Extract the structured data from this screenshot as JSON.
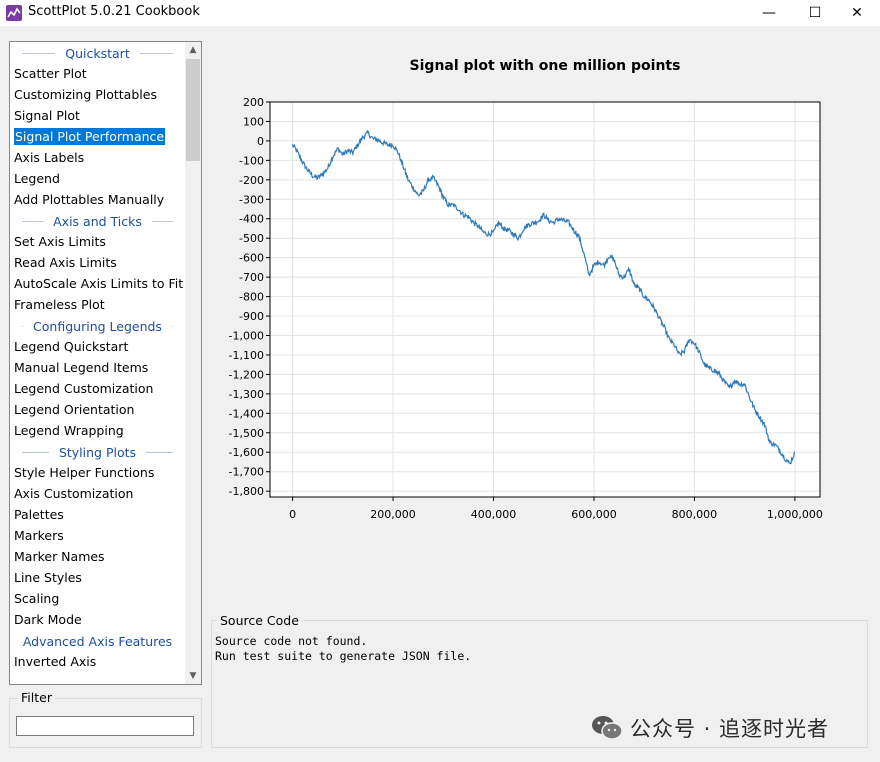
{
  "window": {
    "title": "ScottPlot 5.0.21 Cookbook",
    "minimize": "—",
    "maximize": "☐",
    "close": "✕",
    "icon": "app-chart-icon"
  },
  "sidebar": {
    "rows": [
      {
        "type": "category",
        "label": "Quickstart"
      },
      {
        "type": "item",
        "label": "Scatter Plot"
      },
      {
        "type": "item",
        "label": "Customizing Plottables"
      },
      {
        "type": "item",
        "label": "Signal Plot"
      },
      {
        "type": "item",
        "label": "Signal Plot Performance",
        "selected": true
      },
      {
        "type": "item",
        "label": "Axis Labels"
      },
      {
        "type": "item",
        "label": "Legend"
      },
      {
        "type": "item",
        "label": "Add Plottables Manually"
      },
      {
        "type": "category",
        "label": "Axis and Ticks"
      },
      {
        "type": "item",
        "label": "Set Axis Limits"
      },
      {
        "type": "item",
        "label": "Read Axis Limits"
      },
      {
        "type": "item",
        "label": "AutoScale Axis Limits to Fit Da"
      },
      {
        "type": "item",
        "label": "Frameless Plot"
      },
      {
        "type": "category",
        "label": "Configuring Legends"
      },
      {
        "type": "item",
        "label": "Legend Quickstart"
      },
      {
        "type": "item",
        "label": "Manual Legend Items"
      },
      {
        "type": "item",
        "label": "Legend Customization"
      },
      {
        "type": "item",
        "label": "Legend Orientation"
      },
      {
        "type": "item",
        "label": "Legend Wrapping"
      },
      {
        "type": "category",
        "label": "Styling Plots"
      },
      {
        "type": "item",
        "label": "Style Helper Functions"
      },
      {
        "type": "item",
        "label": "Axis Customization"
      },
      {
        "type": "item",
        "label": "Palettes"
      },
      {
        "type": "item",
        "label": "Markers"
      },
      {
        "type": "item",
        "label": "Marker Names"
      },
      {
        "type": "item",
        "label": "Line Styles"
      },
      {
        "type": "item",
        "label": "Scaling"
      },
      {
        "type": "item",
        "label": "Dark Mode"
      },
      {
        "type": "category",
        "label": "Advanced Axis Features"
      },
      {
        "type": "item",
        "label": "Inverted Axis"
      }
    ],
    "scroll_up": "▲",
    "scroll_down": "▼"
  },
  "filter": {
    "label": "Filter",
    "value": ""
  },
  "chart_data": {
    "type": "line",
    "title": "Signal plot with one million points",
    "xlim": [
      -45000,
      1050000
    ],
    "ylim": [
      -1830,
      200
    ],
    "x_ticks": [
      0,
      200000,
      400000,
      600000,
      800000,
      1000000
    ],
    "x_tick_labels": [
      "0",
      "200,000",
      "400,000",
      "600,000",
      "800,000",
      "1,000,000"
    ],
    "y_ticks": [
      200,
      100,
      0,
      -100,
      -200,
      -300,
      -400,
      -500,
      -600,
      -700,
      -800,
      -900,
      -1000,
      -1100,
      -1200,
      -1300,
      -1400,
      -1500,
      -1600,
      -1700,
      -1800
    ],
    "y_tick_labels": [
      "200",
      "100",
      "0",
      "-100",
      "-200",
      "-300",
      "-400",
      "-500",
      "-600",
      "-700",
      "-800",
      "-900",
      "-1,000",
      "-1,100",
      "-1,200",
      "-1,300",
      "-1,400",
      "-1,500",
      "-1,600",
      "-1,700",
      "-1,800"
    ],
    "grid": true,
    "line_color": "#2e7ab8",
    "series": [
      {
        "x": [
          0,
          10000,
          20000,
          30000,
          40000,
          50000,
          60000,
          70000,
          80000,
          90000,
          100000,
          110000,
          120000,
          130000,
          140000,
          150000,
          160000,
          170000,
          180000,
          190000,
          200000,
          210000,
          220000,
          230000,
          240000,
          250000,
          260000,
          270000,
          280000,
          290000,
          300000,
          310000,
          320000,
          330000,
          340000,
          350000,
          360000,
          370000,
          380000,
          390000,
          400000,
          410000,
          420000,
          430000,
          440000,
          450000,
          460000,
          470000,
          480000,
          490000,
          500000,
          510000,
          520000,
          530000,
          540000,
          550000,
          560000,
          570000,
          580000,
          590000,
          600000,
          610000,
          620000,
          630000,
          640000,
          650000,
          660000,
          670000,
          680000,
          690000,
          700000,
          710000,
          720000,
          730000,
          740000,
          750000,
          760000,
          770000,
          780000,
          790000,
          800000,
          810000,
          820000,
          830000,
          840000,
          850000,
          860000,
          870000,
          880000,
          890000,
          900000,
          910000,
          920000,
          930000,
          940000,
          950000,
          960000,
          970000,
          980000,
          990000,
          1000000
        ],
        "y": [
          -20,
          -60,
          -110,
          -150,
          -180,
          -190,
          -170,
          -140,
          -80,
          -40,
          -70,
          -50,
          -60,
          -20,
          20,
          40,
          10,
          5,
          -10,
          -20,
          -20,
          -60,
          -130,
          -200,
          -240,
          -280,
          -260,
          -200,
          -190,
          -230,
          -290,
          -330,
          -330,
          -350,
          -380,
          -390,
          -420,
          -440,
          -470,
          -480,
          -470,
          -420,
          -450,
          -460,
          -480,
          -500,
          -450,
          -430,
          -420,
          -410,
          -380,
          -410,
          -420,
          -400,
          -410,
          -420,
          -460,
          -490,
          -580,
          -690,
          -640,
          -620,
          -640,
          -590,
          -610,
          -690,
          -700,
          -660,
          -740,
          -760,
          -800,
          -820,
          -860,
          -910,
          -960,
          -1020,
          -1050,
          -1100,
          -1080,
          -1020,
          -1040,
          -1090,
          -1150,
          -1170,
          -1180,
          -1200,
          -1240,
          -1270,
          -1230,
          -1250,
          -1250,
          -1320,
          -1380,
          -1420,
          -1460,
          -1550,
          -1560,
          -1590,
          -1630,
          -1660,
          -1600
        ]
      }
    ]
  },
  "source": {
    "label": "Source Code",
    "lines": "Source code not found.\nRun test suite to generate JSON file."
  },
  "watermark": {
    "text": "公众号 · 追逐时光者",
    "icon": "wechat-icon"
  }
}
